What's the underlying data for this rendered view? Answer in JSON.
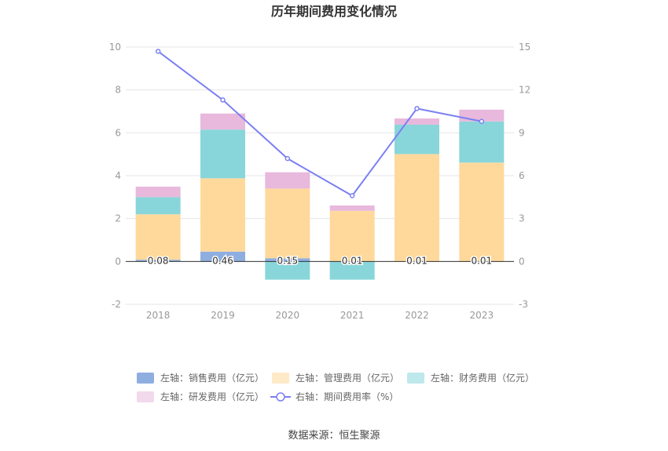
{
  "chart_data": {
    "type": "bar",
    "title": "历年期间费用变化情况",
    "categories": [
      "2018",
      "2019",
      "2020",
      "2021",
      "2022",
      "2023"
    ],
    "y_left": {
      "min": -2,
      "max": 10,
      "ticks": [
        "-2",
        "0",
        "2",
        "4",
        "6",
        "8",
        "10"
      ]
    },
    "y_right": {
      "min": -3,
      "max": 15,
      "ticks": [
        "-3",
        "0",
        "3",
        "6",
        "9",
        "12",
        "15"
      ]
    },
    "series": [
      {
        "name": "左轴：销售费用（亿元）",
        "axis": "left",
        "kind": "bar",
        "color": "#8eaee0",
        "values": [
          0.08,
          0.46,
          0.15,
          0.01,
          0.01,
          0.01
        ],
        "labels": [
          "0.08",
          "0.46",
          "0.15",
          "0.01",
          "0.01",
          "0.01"
        ]
      },
      {
        "name": "左轴：管理费用（亿元）",
        "axis": "left",
        "kind": "bar",
        "color": "#ffd99b",
        "values": [
          2.12,
          3.42,
          3.25,
          2.35,
          5.0,
          4.6
        ]
      },
      {
        "name": "左轴：财务费用（亿元）",
        "axis": "left",
        "kind": "bar",
        "color": "#88d6da",
        "values": [
          0.8,
          2.27,
          -0.85,
          -0.85,
          1.37,
          1.92
        ]
      },
      {
        "name": "左轴：研发费用（亿元）",
        "axis": "left",
        "kind": "bar",
        "color": "#e8b9dc",
        "values": [
          0.49,
          0.75,
          0.76,
          0.25,
          0.29,
          0.55
        ]
      },
      {
        "name": "右轴：期间费用率（%）",
        "axis": "right",
        "kind": "line",
        "color": "#7b80f2",
        "values": [
          14.7,
          11.3,
          7.2,
          4.6,
          10.7,
          9.8
        ]
      }
    ],
    "legend_position": "bottom",
    "source": "数据来源：恒生聚源"
  }
}
